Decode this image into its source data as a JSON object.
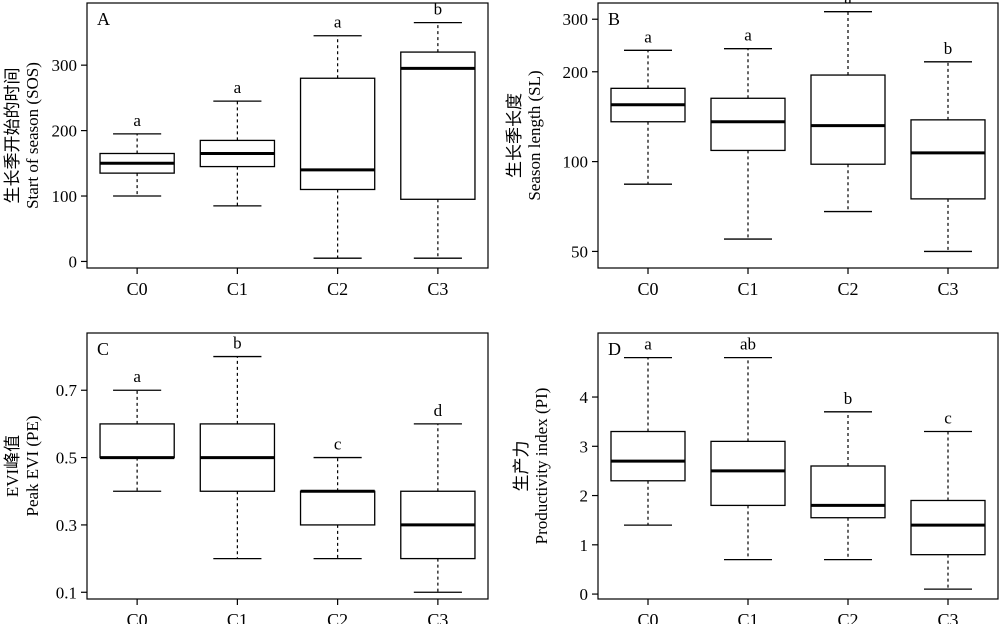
{
  "chart_data": [
    {
      "type": "box",
      "panel": "A",
      "ylabel_cn": "生长季开始的时间",
      "ylabel_en": "Start of season (SOS)",
      "categories": [
        "C0",
        "C1",
        "C2",
        "C3"
      ],
      "ylim": [
        -10,
        395
      ],
      "yticks": [
        0,
        100,
        200,
        300
      ],
      "boxes": [
        {
          "min": 100,
          "q1": 135,
          "median": 150,
          "q3": 165,
          "max": 195,
          "letter": "a"
        },
        {
          "min": 85,
          "q1": 145,
          "median": 165,
          "q3": 185,
          "max": 245,
          "letter": "a"
        },
        {
          "min": 5,
          "q1": 110,
          "median": 140,
          "q3": 280,
          "max": 345,
          "letter": "a"
        },
        {
          "min": 5,
          "q1": 95,
          "median": 295,
          "q3": 320,
          "max": 365,
          "letter": "b"
        }
      ]
    },
    {
      "type": "box",
      "panel": "B",
      "ylabel_cn": "生长季长度",
      "ylabel_en": "Season length (SL)",
      "categories": [
        "C0",
        "C1",
        "C2",
        "C3"
      ],
      "ylim": [
        44,
        340
      ],
      "yticks": [
        50,
        100,
        200,
        300
      ],
      "ytick_labels": [
        "50",
        "100",
        "200",
        "300"
      ],
      "boxes": [
        {
          "min": 84,
          "q1": 136,
          "median": 155,
          "q3": 176,
          "max": 236,
          "letter": "a"
        },
        {
          "min": 55,
          "q1": 109,
          "median": 136,
          "q3": 163,
          "max": 239,
          "letter": "a"
        },
        {
          "min": 68,
          "q1": 98,
          "median": 132,
          "q3": 195,
          "max": 318,
          "letter": "a"
        },
        {
          "min": 50,
          "q1": 75,
          "median": 107,
          "q3": 138,
          "max": 216,
          "letter": "b"
        }
      ]
    },
    {
      "type": "box",
      "panel": "C",
      "ylabel_cn": "EVI峰值",
      "ylabel_en": "Peak EVI (PE)",
      "categories": [
        "C0",
        "C1",
        "C2",
        "C3"
      ],
      "ylim": [
        0.08,
        0.87
      ],
      "yticks": [
        0.1,
        0.3,
        0.5,
        0.7
      ],
      "boxes": [
        {
          "min": 0.4,
          "q1": 0.5,
          "median": 0.5,
          "q3": 0.6,
          "max": 0.7,
          "letter": "a"
        },
        {
          "min": 0.2,
          "q1": 0.4,
          "median": 0.5,
          "q3": 0.6,
          "max": 0.8,
          "letter": "b"
        },
        {
          "min": 0.2,
          "q1": 0.3,
          "median": 0.4,
          "q3": 0.4,
          "max": 0.5,
          "letter": "c"
        },
        {
          "min": 0.1,
          "q1": 0.2,
          "median": 0.3,
          "q3": 0.4,
          "max": 0.6,
          "letter": "d"
        }
      ]
    },
    {
      "type": "box",
      "panel": "D",
      "ylabel_cn": "生产力",
      "ylabel_en": "Productivity index (PI)",
      "categories": [
        "C0",
        "C1",
        "C2",
        "C3"
      ],
      "ylim": [
        -0.1,
        5.3
      ],
      "yticks": [
        0,
        1,
        2,
        3,
        4
      ],
      "boxes": [
        {
          "min": 1.4,
          "q1": 2.3,
          "median": 2.7,
          "q3": 3.3,
          "max": 4.8,
          "letter": "a"
        },
        {
          "min": 0.7,
          "q1": 1.8,
          "median": 2.5,
          "q3": 3.1,
          "max": 4.8,
          "letter": "ab"
        },
        {
          "min": 0.7,
          "q1": 1.55,
          "median": 1.8,
          "q3": 2.6,
          "max": 3.7,
          "letter": "b"
        },
        {
          "min": 0.1,
          "q1": 0.8,
          "median": 1.4,
          "q3": 1.9,
          "max": 3.3,
          "letter": "c"
        }
      ]
    }
  ]
}
